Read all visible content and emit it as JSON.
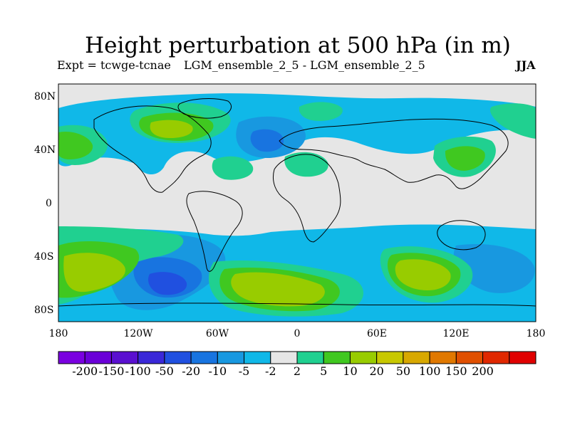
{
  "title": "Height perturbation at 500 hPa (in m)",
  "expt": "Expt = tcwge-tcnae",
  "comparison": "LGM_ensemble_2_5 - LGM_ensemble_2_5",
  "season": "JJA",
  "lat_labels": [
    "80N",
    "40N",
    "0",
    "40S",
    "80S"
  ],
  "lon_labels": [
    "180",
    "120W",
    "60W",
    "0",
    "60E",
    "120E",
    "180"
  ],
  "colorbar": {
    "colors": [
      "#7a00e0",
      "#6a00d8",
      "#5a10d0",
      "#3a28d8",
      "#2050e0",
      "#1874e0",
      "#1898e0",
      "#10b8e8",
      "#e6e6e6",
      "#20d090",
      "#40c820",
      "#98cc00",
      "#c8c800",
      "#d8a800",
      "#e07800",
      "#e05000",
      "#e02800",
      "#e00000"
    ],
    "labels": [
      "-200",
      "-150",
      "-100",
      "-50",
      "-20",
      "-10",
      "-5",
      "-2",
      "2",
      "5",
      "10",
      "20",
      "50",
      "100",
      "150",
      "200"
    ]
  },
  "contour_colors": {
    "b1": "#10b8e8",
    "b2": "#1898e0",
    "b3": "#1874e0",
    "b4": "#2050e0",
    "g1": "#20d090",
    "g2": "#40c820",
    "g3": "#98cc00"
  }
}
